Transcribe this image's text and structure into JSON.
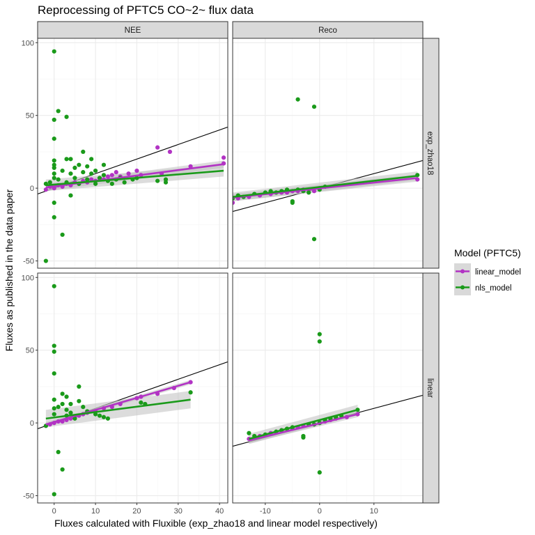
{
  "title": "Reprocessing of PFTC5 CO~2~ flux data",
  "xlabel": "Fluxes calculated with Fluxible (exp_zhao18 and linear model respectively)",
  "ylabel": "Fluxes as published in the data paper",
  "col_strips": [
    "NEE",
    "Reco"
  ],
  "row_strips": [
    "exp_zhao18",
    "linear"
  ],
  "legend": {
    "title": "Model (PFTC5)",
    "items": [
      {
        "label": "linear_model",
        "color": "#b233c4"
      },
      {
        "label": "nls_model",
        "color": "#1a9a1a"
      }
    ]
  },
  "colors": {
    "linear_model": "#b233c4",
    "nls_model": "#1a9a1a",
    "identity": "#000000",
    "ribbon": "#bfbfbf",
    "grid_major": "#ebebeb",
    "grid_minor": "#f5f5f5"
  },
  "chart_data": {
    "type": "scatter",
    "facets": "rows: exp_zhao18, linear; cols: NEE, Reco",
    "ylim": [
      -55,
      103
    ],
    "y_ticks": [
      -50,
      0,
      50,
      100
    ],
    "x_axes": {
      "NEE": {
        "xlim": [
          -4,
          42
        ],
        "ticks": [
          0,
          10,
          20,
          30,
          40
        ]
      },
      "Reco": {
        "xlim": [
          -16,
          19
        ],
        "ticks": [
          -10,
          0,
          10
        ]
      }
    },
    "reference_line": "y = x",
    "panels": [
      {
        "row": "exp_zhao18",
        "col": "NEE",
        "fits": [
          {
            "series": "linear_model",
            "x": [
              -2,
              41
            ],
            "y": [
              0.5,
              16.5
            ],
            "band": 2.5
          },
          {
            "series": "nls_model",
            "x": [
              -2,
              41
            ],
            "y": [
              2,
              12
            ],
            "band": 4
          }
        ],
        "points": {
          "linear_model": [
            [
              -2,
              -1
            ],
            [
              -1,
              1
            ],
            [
              0,
              0
            ],
            [
              1,
              2
            ],
            [
              2,
              1
            ],
            [
              3,
              3
            ],
            [
              4,
              2
            ],
            [
              5,
              4
            ],
            [
              6,
              3
            ],
            [
              7,
              5
            ],
            [
              8,
              4
            ],
            [
              9,
              6
            ],
            [
              10,
              5
            ],
            [
              11,
              7
            ],
            [
              12,
              6
            ],
            [
              13,
              8
            ],
            [
              14,
              9
            ],
            [
              15,
              11
            ],
            [
              16,
              8
            ],
            [
              18,
              10
            ],
            [
              20,
              12
            ],
            [
              21,
              9
            ],
            [
              25,
              28
            ],
            [
              28,
              25
            ],
            [
              26,
              10
            ],
            [
              33,
              15
            ],
            [
              41,
              21
            ],
            [
              41,
              17
            ]
          ],
          "nls_model": [
            [
              -2,
              -50
            ],
            [
              -2,
              3
            ],
            [
              -1,
              4
            ],
            [
              0,
              94
            ],
            [
              0,
              47
            ],
            [
              0,
              34
            ],
            [
              0,
              19
            ],
            [
              0,
              16
            ],
            [
              0,
              14
            ],
            [
              0,
              10
            ],
            [
              0,
              7
            ],
            [
              0,
              -20
            ],
            [
              0,
              -10
            ],
            [
              1,
              53
            ],
            [
              1,
              6
            ],
            [
              2,
              -32
            ],
            [
              2,
              12
            ],
            [
              3,
              49
            ],
            [
              3,
              20
            ],
            [
              3,
              4
            ],
            [
              4,
              -5
            ],
            [
              4,
              10
            ],
            [
              4,
              20
            ],
            [
              5,
              7
            ],
            [
              5,
              14
            ],
            [
              6,
              16
            ],
            [
              6,
              3
            ],
            [
              7,
              11
            ],
            [
              7,
              25
            ],
            [
              8,
              15
            ],
            [
              8,
              6
            ],
            [
              9,
              10
            ],
            [
              9,
              20
            ],
            [
              10,
              12
            ],
            [
              10,
              3
            ],
            [
              11,
              7
            ],
            [
              12,
              16
            ],
            [
              12,
              9
            ],
            [
              13,
              5
            ],
            [
              14,
              3
            ],
            [
              15,
              6
            ],
            [
              16,
              7
            ],
            [
              17,
              4
            ],
            [
              19,
              6
            ],
            [
              20,
              7
            ],
            [
              25,
              5
            ],
            [
              27,
              6
            ],
            [
              27,
              4
            ]
          ]
        }
      },
      {
        "row": "exp_zhao18",
        "col": "Reco",
        "fits": [
          {
            "series": "linear_model",
            "x": [
              -16,
              18
            ],
            "y": [
              -6.5,
              7
            ],
            "band": 2.5
          },
          {
            "series": "nls_model",
            "x": [
              -16,
              18
            ],
            "y": [
              -6,
              8.5
            ],
            "band": 3
          }
        ],
        "points": {
          "linear_model": [
            [
              -16,
              -10
            ],
            [
              -15,
              -7
            ],
            [
              -13,
              -6
            ],
            [
              -11,
              -5
            ],
            [
              -9,
              -4
            ],
            [
              -7,
              -3
            ],
            [
              -6,
              -3
            ],
            [
              -5,
              -2
            ],
            [
              -4,
              -2
            ],
            [
              -3,
              -1
            ],
            [
              -2,
              -1
            ],
            [
              -1,
              -2
            ],
            [
              0,
              0
            ],
            [
              18,
              6
            ]
          ],
          "nls_model": [
            [
              -16,
              -7
            ],
            [
              -15,
              -5
            ],
            [
              -14,
              -6
            ],
            [
              -12,
              -4
            ],
            [
              -10,
              -3
            ],
            [
              -9,
              -2
            ],
            [
              -8,
              -3
            ],
            [
              -7,
              -2
            ],
            [
              -6,
              -1
            ],
            [
              -5,
              -9
            ],
            [
              -5,
              -10
            ],
            [
              -4,
              61
            ],
            [
              -4,
              -1
            ],
            [
              -3,
              -2
            ],
            [
              -2,
              -3
            ],
            [
              -1,
              56
            ],
            [
              -1,
              -35
            ],
            [
              0,
              -1
            ],
            [
              1,
              1
            ],
            [
              18,
              9
            ]
          ]
        }
      },
      {
        "row": "linear",
        "col": "NEE",
        "fits": [
          {
            "series": "linear_model",
            "x": [
              -2,
              33
            ],
            "y": [
              -1,
              28
            ],
            "band": 1.5
          },
          {
            "series": "nls_model",
            "x": [
              -2,
              33
            ],
            "y": [
              3,
              16
            ],
            "band": 6
          }
        ],
        "points": {
          "linear_model": [
            [
              -2,
              -2
            ],
            [
              -1,
              -1
            ],
            [
              0,
              0
            ],
            [
              1,
              1
            ],
            [
              2,
              1
            ],
            [
              3,
              2
            ],
            [
              4,
              3
            ],
            [
              5,
              4
            ],
            [
              6,
              5
            ],
            [
              7,
              6
            ],
            [
              8,
              7
            ],
            [
              10,
              8
            ],
            [
              12,
              10
            ],
            [
              14,
              11
            ],
            [
              16,
              13
            ],
            [
              20,
              17
            ],
            [
              21,
              18
            ],
            [
              25,
              20
            ],
            [
              29,
              24
            ],
            [
              33,
              28
            ]
          ],
          "nls_model": [
            [
              -2,
              -2
            ],
            [
              0,
              94
            ],
            [
              0,
              53
            ],
            [
              0,
              49
            ],
            [
              0,
              34
            ],
            [
              0,
              -49
            ],
            [
              0,
              16
            ],
            [
              0,
              10
            ],
            [
              0,
              6
            ],
            [
              1,
              -20
            ],
            [
              1,
              11
            ],
            [
              2,
              -32
            ],
            [
              2,
              20
            ],
            [
              2,
              13
            ],
            [
              3,
              18
            ],
            [
              3,
              9
            ],
            [
              3,
              5
            ],
            [
              4,
              13
            ],
            [
              4,
              7
            ],
            [
              5,
              3
            ],
            [
              6,
              25
            ],
            [
              6,
              15
            ],
            [
              7,
              11
            ],
            [
              8,
              8
            ],
            [
              10,
              6
            ],
            [
              11,
              5
            ],
            [
              12,
              4
            ],
            [
              13,
              3
            ],
            [
              21,
              14
            ],
            [
              22,
              13
            ],
            [
              33,
              21
            ]
          ]
        }
      },
      {
        "row": "linear",
        "col": "Reco",
        "fits": [
          {
            "series": "linear_model",
            "x": [
              -13,
              7
            ],
            "y": [
              -12,
              6
            ],
            "band": 2
          },
          {
            "series": "nls_model",
            "x": [
              -13,
              7
            ],
            "y": [
              -11,
              9
            ],
            "band": 3.5
          }
        ],
        "points": {
          "linear_model": [
            [
              -13,
              -11
            ],
            [
              -11,
              -9
            ],
            [
              -9,
              -7
            ],
            [
              -7,
              -5
            ],
            [
              -5,
              -4
            ],
            [
              -4,
              -3
            ],
            [
              -3,
              -2
            ],
            [
              -2,
              -1
            ],
            [
              -1,
              -1
            ],
            [
              0,
              0
            ],
            [
              1,
              1
            ],
            [
              2,
              2
            ],
            [
              3,
              3
            ],
            [
              5,
              4
            ],
            [
              7,
              6
            ]
          ],
          "nls_model": [
            [
              -13,
              -7
            ],
            [
              -12,
              -9
            ],
            [
              -10,
              -8
            ],
            [
              -8,
              -6
            ],
            [
              -7,
              -5
            ],
            [
              -6,
              -4
            ],
            [
              -5,
              -3
            ],
            [
              -3,
              -10
            ],
            [
              -3,
              -9
            ],
            [
              -2,
              -1
            ],
            [
              -1,
              -1
            ],
            [
              0,
              61
            ],
            [
              0,
              56
            ],
            [
              0,
              -34
            ],
            [
              0,
              0
            ],
            [
              1,
              2
            ],
            [
              2,
              3
            ],
            [
              3,
              4
            ],
            [
              4,
              5
            ],
            [
              7,
              9
            ]
          ]
        }
      }
    ]
  }
}
